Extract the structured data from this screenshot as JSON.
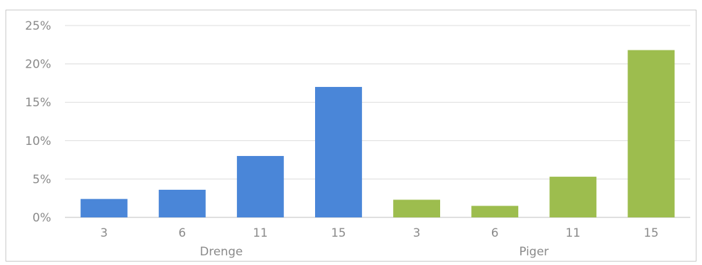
{
  "chart_data": {
    "type": "bar",
    "title": "",
    "xlabel": "",
    "ylabel": "",
    "ylim": [
      0,
      25
    ],
    "yticks": [
      "0%",
      "5%",
      "10%",
      "15%",
      "20%",
      "25%"
    ],
    "grid": true,
    "legend": "none",
    "groups": [
      {
        "name": "Drenge",
        "color": "#4a86d8",
        "categories": [
          "3",
          "6",
          "11",
          "15"
        ],
        "values": [
          2.4,
          3.6,
          8.0,
          17.0
        ]
      },
      {
        "name": "Piger",
        "color": "#9dbd4e",
        "categories": [
          "3",
          "6",
          "11",
          "15"
        ],
        "values": [
          2.3,
          1.5,
          5.3,
          21.8
        ]
      }
    ]
  }
}
